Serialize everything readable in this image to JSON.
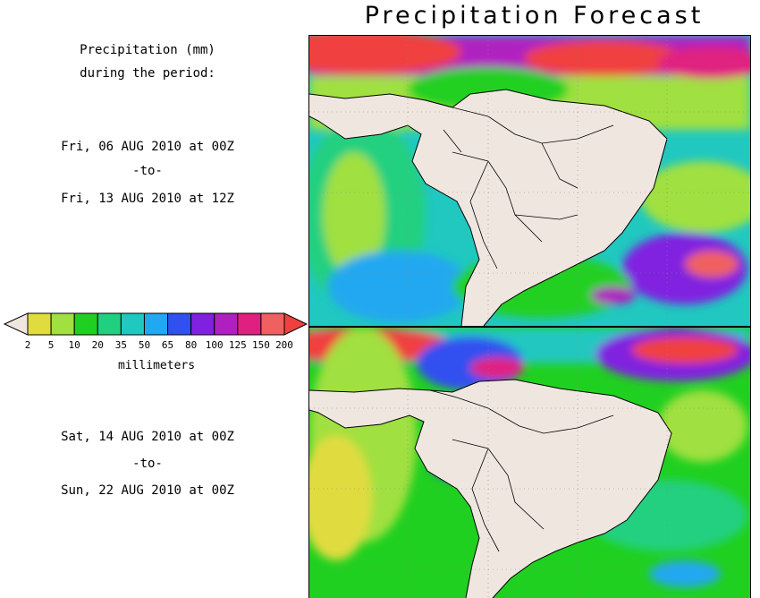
{
  "title": "Precipitation Forecast",
  "legend": {
    "heading": [
      "Precipitation (mm)",
      "during the period:"
    ],
    "unit": "millimeters",
    "labels": [
      "2",
      "5",
      "10",
      "20",
      "35",
      "50",
      "65",
      "80",
      "100",
      "125",
      "150",
      "200"
    ],
    "colors": [
      "#f0e6e0",
      "#e0dc40",
      "#a0e040",
      "#20d020",
      "#20d080",
      "#20c8c0",
      "#20a8f0",
      "#3050f0",
      "#8020e0",
      "#b020c0",
      "#e02080",
      "#f06060",
      "#f04040"
    ]
  },
  "periods": [
    {
      "start": "Fri, 06 AUG 2010 at 00Z",
      "sep": "-to-",
      "end": "Fri, 13 AUG 2010 at 12Z"
    },
    {
      "start": "Sat, 14 AUG 2010 at 00Z",
      "sep": "-to-",
      "end": "Sun, 22 AUG 2010 at 00Z"
    }
  ]
}
